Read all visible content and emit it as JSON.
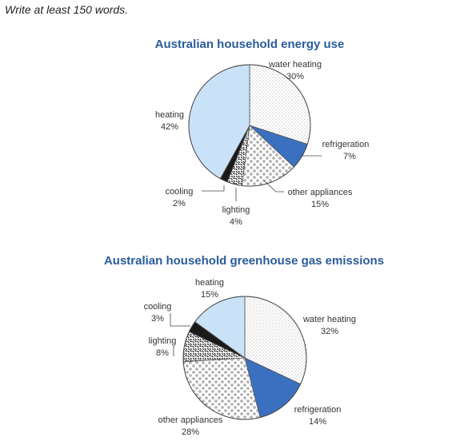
{
  "instruction": "Write at least 150 words.",
  "colors": {
    "heating": "#c9e2f8",
    "refrigeration": "#3a70bf",
    "cooling": "#1a1a1a",
    "title": "#2a5c9a"
  },
  "chart_data": [
    {
      "type": "pie",
      "title": "Australian household energy use",
      "slices": [
        {
          "name": "water heating",
          "value": 30,
          "label": "30%",
          "pattern": "dots"
        },
        {
          "name": "refrigeration",
          "value": 7,
          "label": "7%",
          "pattern": "solid-blue"
        },
        {
          "name": "other appliances",
          "value": 15,
          "label": "15%",
          "pattern": "circles"
        },
        {
          "name": "lighting",
          "value": 4,
          "label": "4%",
          "pattern": "dashes"
        },
        {
          "name": "cooling",
          "value": 2,
          "label": "2%",
          "pattern": "solid-black"
        },
        {
          "name": "heating",
          "value": 42,
          "label": "42%",
          "pattern": "solid-light-blue"
        }
      ]
    },
    {
      "type": "pie",
      "title": "Australian household greenhouse gas emissions",
      "slices": [
        {
          "name": "water heating",
          "value": 32,
          "label": "32%",
          "pattern": "dots"
        },
        {
          "name": "refrigeration",
          "value": 14,
          "label": "14%",
          "pattern": "solid-blue"
        },
        {
          "name": "other appliances",
          "value": 28,
          "label": "28%",
          "pattern": "circles"
        },
        {
          "name": "lighting",
          "value": 8,
          "label": "8%",
          "pattern": "dashes"
        },
        {
          "name": "cooling",
          "value": 3,
          "label": "3%",
          "pattern": "solid-black"
        },
        {
          "name": "heating",
          "value": 15,
          "label": "15%",
          "pattern": "solid-light-blue"
        }
      ]
    }
  ]
}
